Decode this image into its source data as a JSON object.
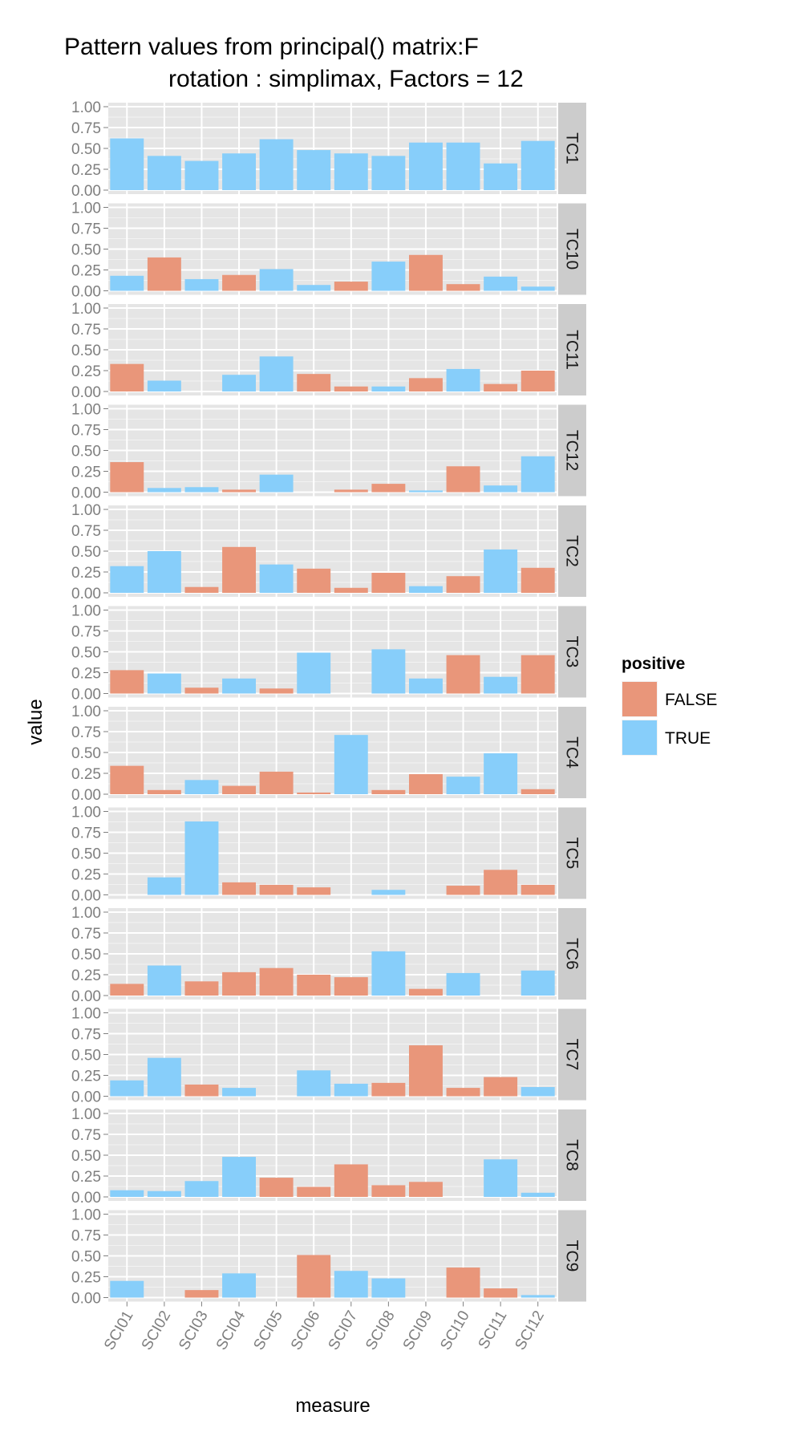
{
  "chart_data": {
    "type": "bar",
    "title_line1": "Pattern values from principal() matrix:F",
    "title_line2": "rotation : simplimax, Factors = 12",
    "xlabel": "measure",
    "ylabel": "value",
    "ylim": [
      0,
      1
    ],
    "yticks": [
      "0.00",
      "0.25",
      "0.50",
      "0.75",
      "1.00"
    ],
    "categories": [
      "SCI01",
      "SCI02",
      "SCI03",
      "SCI04",
      "SCI05",
      "SCI06",
      "SCI07",
      "SCI08",
      "SCI09",
      "SCI10",
      "SCI11",
      "SCI12"
    ],
    "legend": {
      "title": "positive",
      "placement": "right",
      "items": [
        {
          "label": "FALSE",
          "color": "#E9967A"
        },
        {
          "label": "TRUE",
          "color": "#87CEFA"
        }
      ]
    },
    "panels": [
      {
        "label": "TC1",
        "values": [
          0.62,
          0.41,
          0.35,
          0.44,
          0.61,
          0.48,
          0.44,
          0.41,
          0.57,
          0.57,
          0.32,
          0.59
        ],
        "positive": [
          1,
          1,
          1,
          1,
          1,
          1,
          1,
          1,
          1,
          1,
          1,
          1
        ]
      },
      {
        "label": "TC10",
        "values": [
          0.18,
          0.4,
          0.14,
          0.19,
          0.26,
          0.07,
          0.11,
          0.35,
          0.43,
          0.08,
          0.17,
          0.05
        ],
        "positive": [
          1,
          0,
          1,
          0,
          1,
          1,
          0,
          1,
          0,
          0,
          1,
          1
        ]
      },
      {
        "label": "TC11",
        "values": [
          0.33,
          0.13,
          0.0,
          0.2,
          0.42,
          0.21,
          0.06,
          0.06,
          0.16,
          0.27,
          0.09,
          0.25
        ],
        "positive": [
          0,
          1,
          1,
          1,
          1,
          0,
          0,
          1,
          0,
          1,
          0,
          0
        ]
      },
      {
        "label": "TC12",
        "values": [
          0.36,
          0.05,
          0.06,
          0.03,
          0.21,
          0.0,
          0.03,
          0.1,
          0.02,
          0.31,
          0.08,
          0.43
        ],
        "positive": [
          0,
          1,
          1,
          0,
          1,
          1,
          0,
          0,
          1,
          0,
          1,
          1
        ]
      },
      {
        "label": "TC2",
        "values": [
          0.32,
          0.5,
          0.07,
          0.55,
          0.34,
          0.29,
          0.06,
          0.24,
          0.08,
          0.2,
          0.52,
          0.3
        ],
        "positive": [
          1,
          1,
          0,
          0,
          1,
          0,
          0,
          0,
          1,
          0,
          1,
          0
        ]
      },
      {
        "label": "TC3",
        "values": [
          0.28,
          0.24,
          0.07,
          0.18,
          0.06,
          0.49,
          0.0,
          0.53,
          0.18,
          0.46,
          0.2,
          0.46
        ],
        "positive": [
          0,
          1,
          0,
          1,
          0,
          1,
          1,
          1,
          1,
          0,
          1,
          0
        ]
      },
      {
        "label": "TC4",
        "values": [
          0.34,
          0.05,
          0.17,
          0.1,
          0.27,
          0.02,
          0.71,
          0.05,
          0.24,
          0.21,
          0.49,
          0.06
        ],
        "positive": [
          0,
          0,
          1,
          0,
          0,
          0,
          1,
          0,
          0,
          1,
          1,
          0
        ]
      },
      {
        "label": "TC5",
        "values": [
          0.0,
          0.21,
          0.88,
          0.15,
          0.12,
          0.09,
          0.0,
          0.06,
          0.0,
          0.11,
          0.3,
          0.12
        ],
        "positive": [
          1,
          1,
          1,
          0,
          0,
          0,
          1,
          1,
          1,
          0,
          0,
          0
        ]
      },
      {
        "label": "TC6",
        "values": [
          0.14,
          0.36,
          0.17,
          0.28,
          0.33,
          0.25,
          0.22,
          0.53,
          0.08,
          0.27,
          0.0,
          0.3
        ],
        "positive": [
          0,
          1,
          0,
          0,
          0,
          0,
          0,
          1,
          0,
          1,
          1,
          1
        ]
      },
      {
        "label": "TC7",
        "values": [
          0.19,
          0.46,
          0.14,
          0.1,
          0.0,
          0.31,
          0.15,
          0.16,
          0.61,
          0.1,
          0.23,
          0.11
        ],
        "positive": [
          1,
          1,
          0,
          1,
          1,
          1,
          1,
          0,
          0,
          0,
          0,
          1
        ]
      },
      {
        "label": "TC8",
        "values": [
          0.08,
          0.07,
          0.19,
          0.48,
          0.23,
          0.12,
          0.39,
          0.14,
          0.18,
          0.0,
          0.45,
          0.05
        ],
        "positive": [
          1,
          1,
          1,
          1,
          0,
          0,
          0,
          0,
          0,
          1,
          1,
          1
        ]
      },
      {
        "label": "TC9",
        "values": [
          0.2,
          0.0,
          0.09,
          0.29,
          0.0,
          0.51,
          0.32,
          0.23,
          0.0,
          0.36,
          0.11,
          0.03
        ],
        "positive": [
          1,
          1,
          0,
          1,
          1,
          0,
          1,
          1,
          1,
          0,
          0,
          1
        ]
      }
    ]
  }
}
